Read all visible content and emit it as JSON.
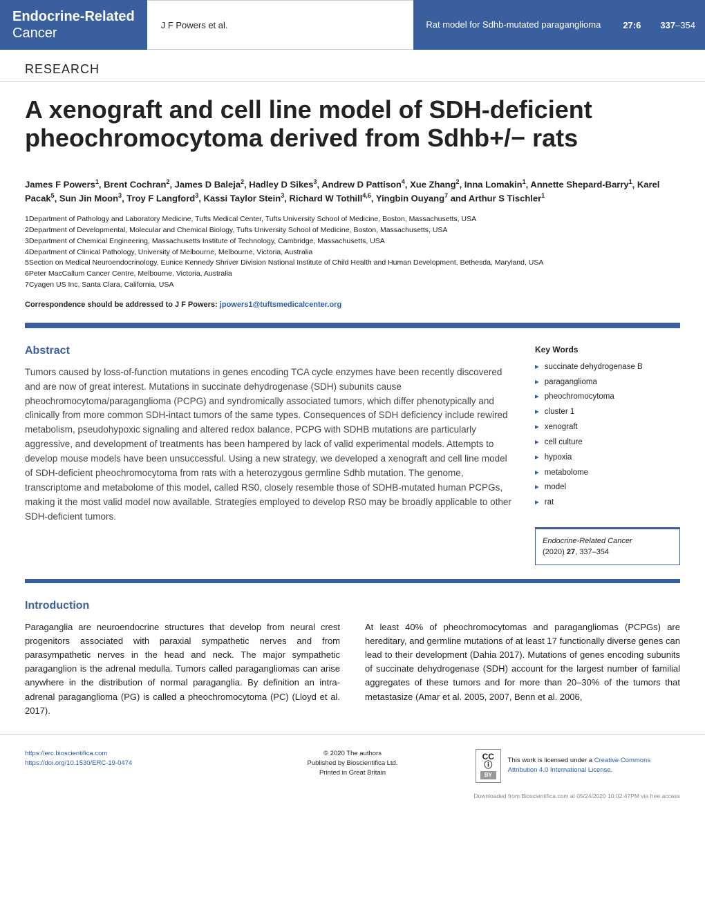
{
  "header": {
    "journal_line1": "Endocrine-Related",
    "journal_line2": "Cancer",
    "authors_short": "J F Powers et al.",
    "running_title": "Rat model for Sdhb-mutated paraganglioma",
    "volume": "27",
    "issue": "6",
    "page_start": "337",
    "page_end": "354"
  },
  "research_label": "RESEARCH",
  "title": "A xenograft and cell line model of SDH-deficient pheochromocytoma derived from Sdhb+/− rats",
  "authors_html": "James F Powers<sup>1</sup>, Brent Cochran<sup>2</sup>, James D Baleja<sup>2</sup>, Hadley D Sikes<sup>3</sup>, Andrew D Pattison<sup>4</sup>, Xue Zhang<sup>2</sup>, Inna Lomakin<sup>1</sup>, Annette Shepard-Barry<sup>1</sup>, Karel Pacak<sup>5</sup>, Sun Jin Moon<sup>3</sup>, Troy F Langford<sup>3</sup>, Kassi Taylor Stein<sup>3</sup>, Richard W Tothill<sup>4,6</sup>, Yingbin Ouyang<sup>7</sup> and Arthur S Tischler<sup>1</sup>",
  "affiliations": [
    "1Department of Pathology and Laboratory Medicine, Tufts Medical Center, Tufts University School of Medicine, Boston, Massachusetts, USA",
    "2Department of Developmental, Molecular and Chemical Biology, Tufts University School of Medicine, Boston, Massachusetts, USA",
    "3Department of Chemical Engineering, Massachusetts Institute of Technology, Cambridge, Massachusetts, USA",
    "4Department of Clinical Pathology, University of Melbourne, Melbourne, Victoria, Australia",
    "5Section on Medical Neuroendocrinology, Eunice Kennedy Shriver Division National Institute of Child Health and Human Development, Bethesda, Maryland, USA",
    "6Peter MacCallum Cancer Centre, Melbourne, Victoria, Australia",
    "7Cyagen US Inc, Santa Clara, California, USA"
  ],
  "correspondence_label": "Correspondence should be addressed to J F Powers: ",
  "correspondence_email": "jpowers1@tuftsmedicalcenter.org",
  "abstract_heading": "Abstract",
  "abstract_text": "Tumors caused by loss-of-function mutations in genes encoding TCA cycle enzymes have been recently discovered and are now of great interest. Mutations in succinate dehydrogenase (SDH) subunits cause pheochromocytoma/paraganglioma (PCPG) and syndromically associated tumors, which differ phenotypically and clinically from more common SDH-intact tumors of the same types. Consequences of SDH deficiency include rewired metabolism, pseudohypoxic signaling and altered redox balance. PCPG with SDHB mutations are particularly aggressive, and development of treatments has been hampered by lack of valid experimental models. Attempts to develop mouse models have been unsuccessful. Using a new strategy, we developed a xenograft and cell line model of SDH-deficient pheochromocytoma from rats with a heterozygous germline Sdhb mutation. The genome, transcriptome and metabolome of this model, called RS0, closely resemble those of SDHB-mutated human PCPGs, making it the most valid model now available. Strategies employed to develop RS0 may be broadly applicable to other SDH-deficient tumors.",
  "keywords_heading": "Key Words",
  "keywords": [
    "succinate dehydrogenase B",
    "paraganglioma",
    "pheochromocytoma",
    "cluster 1",
    "xenograft",
    "cell culture",
    "hypoxia",
    "metabolome",
    "model",
    "rat"
  ],
  "citation": {
    "journal": "Endocrine-Related Cancer",
    "year": "(2020)",
    "volume": "27",
    "pages": ", 337–354"
  },
  "intro_heading": "Introduction",
  "intro_col1": "Paraganglia are neuroendocrine structures that develop from neural crest progenitors associated with paraxial sympathetic nerves and from parasympathetic nerves in the head and neck. The major sympathetic paraganglion is the adrenal medulla. Tumors called paragangliomas can arise anywhere in the distribution of normal paraganglia. By definition an intra-adrenal paraganglioma (PG) is called a pheochromocytoma (PC) (Lloyd et al. 2017).",
  "intro_col2": "At least 40% of pheochromocytomas and paragangliomas (PCPGs) are hereditary, and germline mutations of at least 17 functionally diverse genes can lead to their development (Dahia 2017). Mutations of genes encoding subunits of succinate dehydrogenase (SDH) account for the largest number of familial aggregates of these tumors and for more than 20–30% of the tumors that metastasize (Amar et al. 2005, 2007, Benn et al. 2006,",
  "footer": {
    "url": "https://erc.bioscientifica.com",
    "doi": "https://doi.org/10.1530/ERC-19-0474",
    "copyright": "© 2020 The authors",
    "published": "Published by Bioscientifica Ltd.",
    "printed": "Printed in Great Britain",
    "license_text": "This work is licensed under a ",
    "license_link": "Creative Commons Attribution 4.0 International License.",
    "cc_label": "CC",
    "cc_by": "BY",
    "download": "Downloaded from Bioscientifica.com at 05/24/2020 10:02:47PM via free access"
  }
}
